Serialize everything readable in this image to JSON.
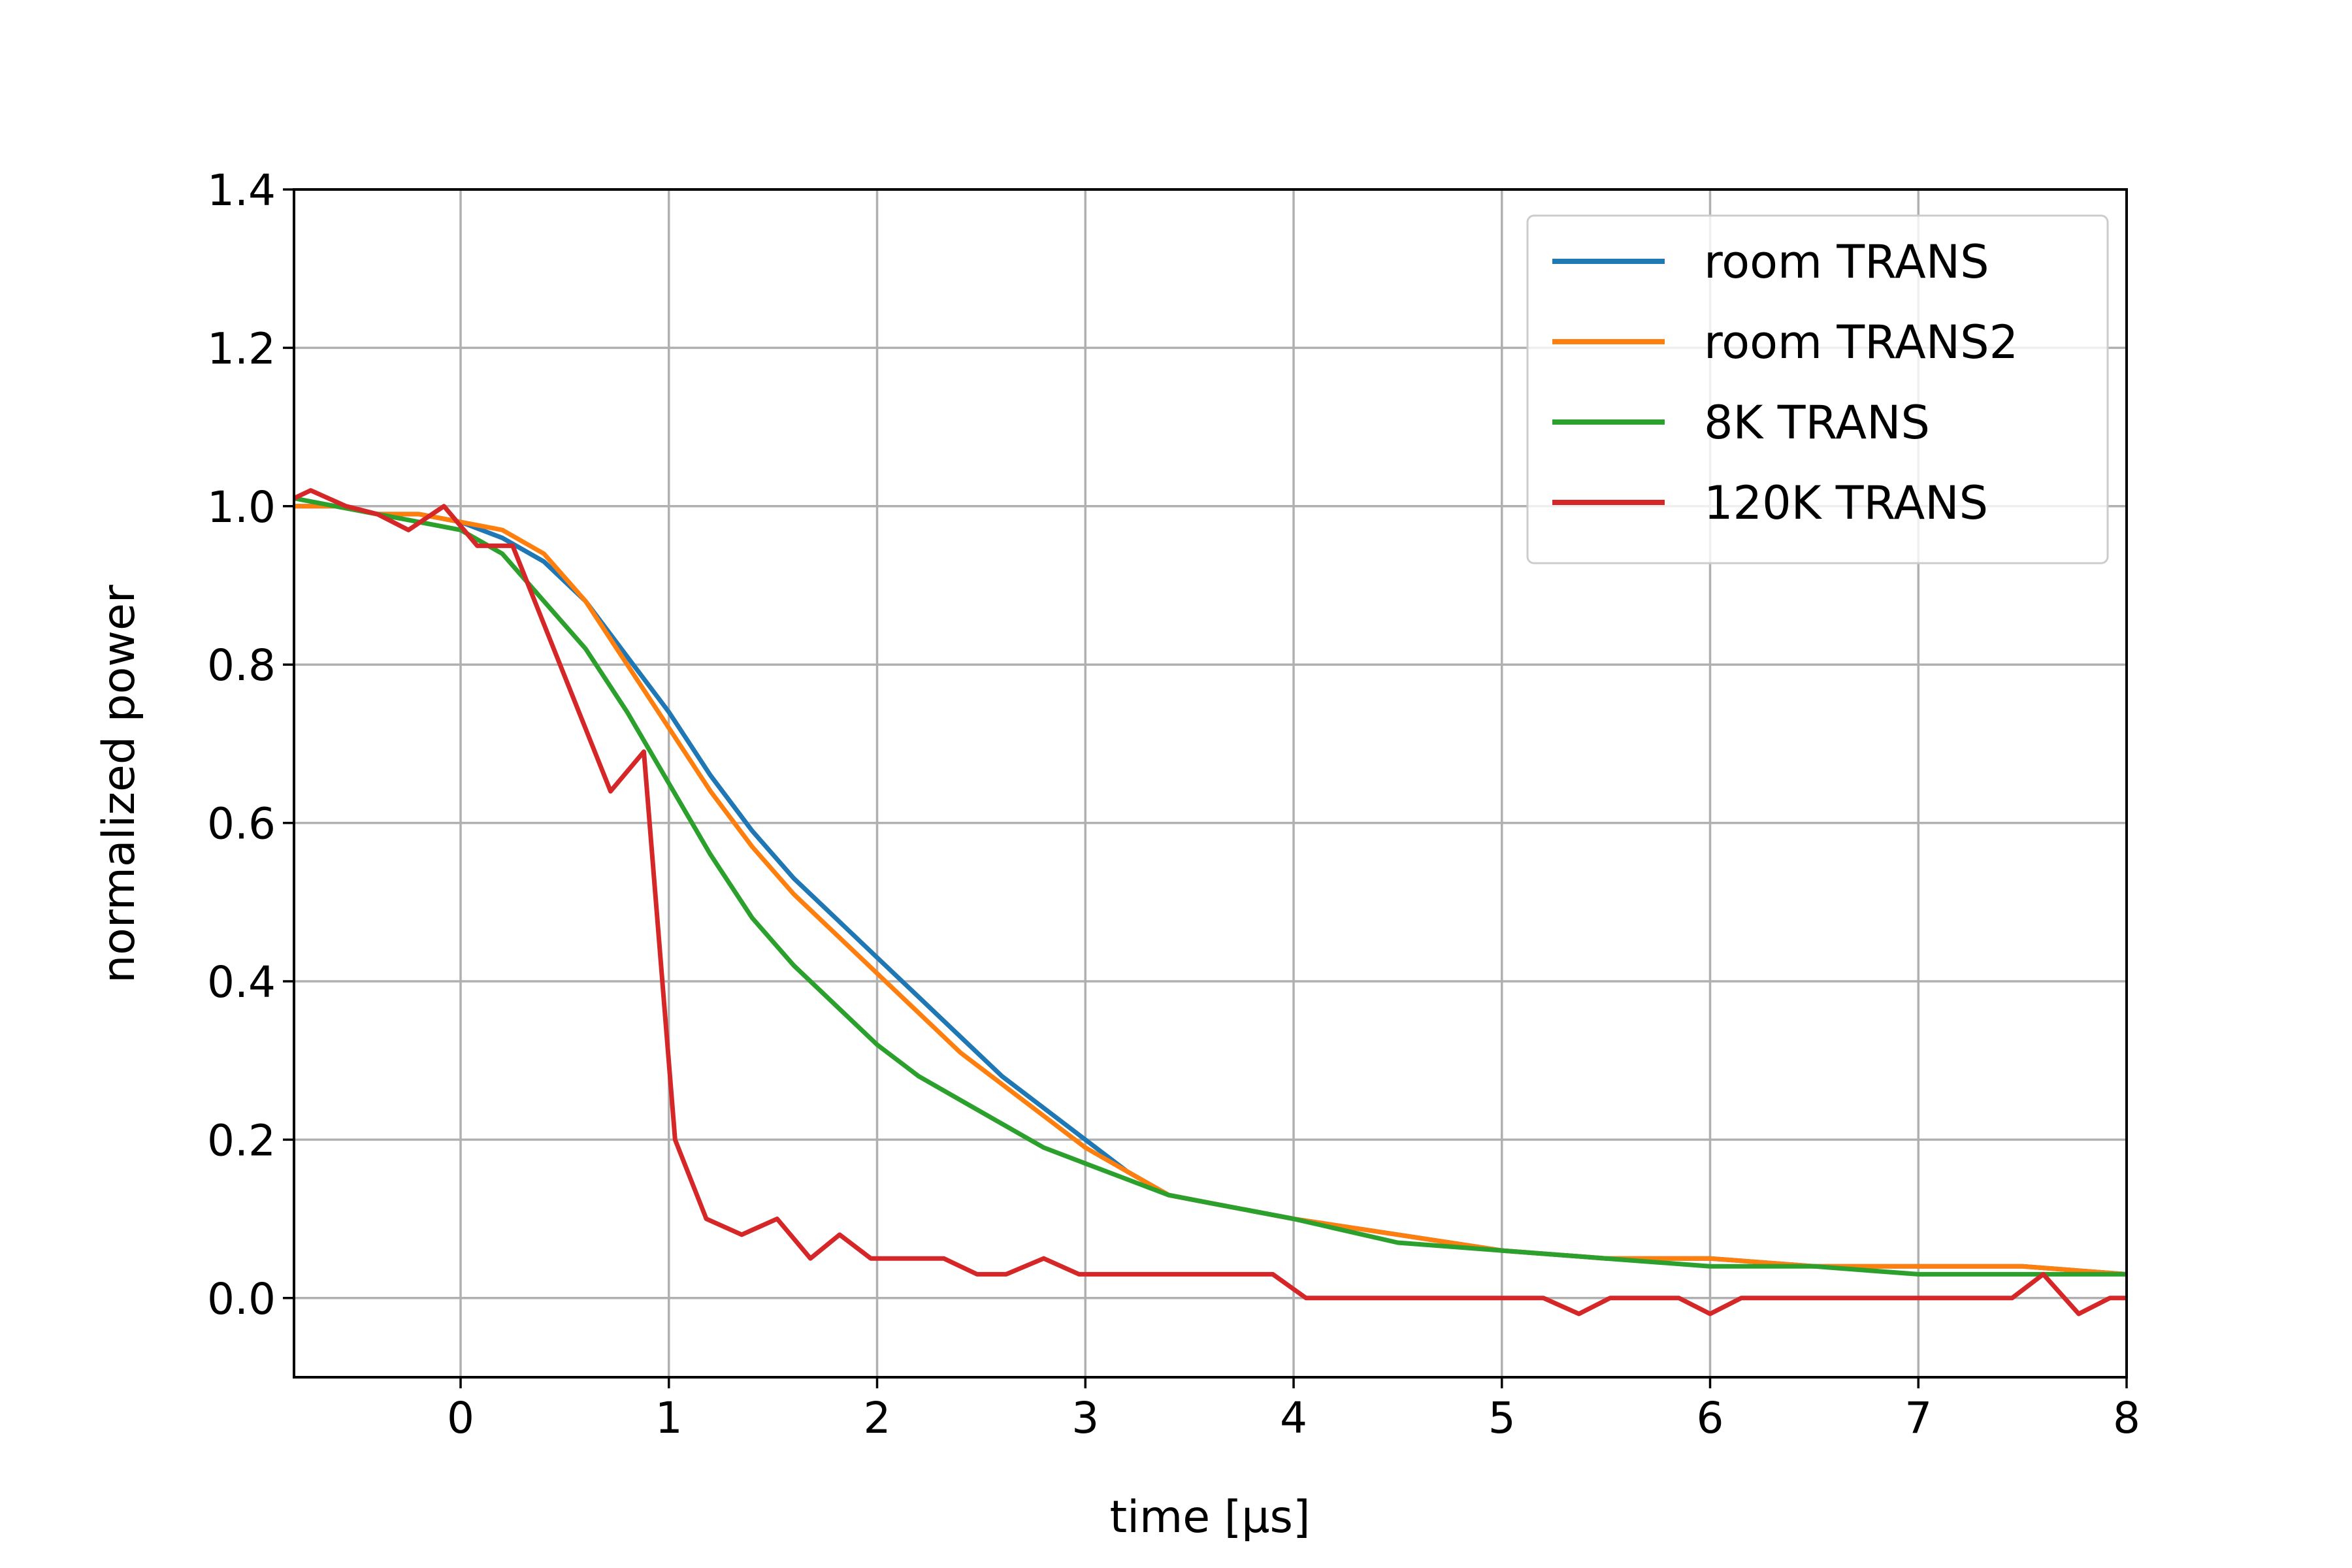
{
  "chart_data": {
    "type": "line",
    "xlabel": "time [μs]",
    "ylabel": "normalized power",
    "xlim": [
      -0.8,
      8
    ],
    "ylim": [
      -0.1,
      1.4
    ],
    "xticks": [
      0,
      1,
      2,
      3,
      4,
      5,
      6,
      7,
      8
    ],
    "yticks": [
      0.0,
      0.2,
      0.4,
      0.6,
      0.8,
      1.0,
      1.2,
      1.4
    ],
    "grid": true,
    "legend": "top-right",
    "series": [
      {
        "name": "room TRANS",
        "color": "#1f77b4",
        "x": [
          -0.8,
          -0.6,
          -0.4,
          -0.2,
          0.0,
          0.2,
          0.4,
          0.6,
          0.8,
          1.0,
          1.2,
          1.4,
          1.6,
          1.8,
          2.0,
          2.2,
          2.4,
          2.6,
          2.8,
          3.0,
          3.2,
          3.4,
          3.6,
          3.8,
          4.0,
          4.5,
          5.0,
          5.5,
          6.0,
          6.5,
          7.0,
          7.5,
          8.0
        ],
        "y": [
          1.0,
          1.0,
          0.99,
          0.99,
          0.98,
          0.96,
          0.93,
          0.88,
          0.81,
          0.74,
          0.66,
          0.59,
          0.53,
          0.48,
          0.43,
          0.38,
          0.33,
          0.28,
          0.24,
          0.2,
          0.16,
          0.13,
          0.12,
          0.11,
          0.1,
          0.08,
          0.06,
          0.05,
          0.05,
          0.04,
          0.04,
          0.04,
          0.03
        ]
      },
      {
        "name": "room TRANS2",
        "color": "#ff7f0e",
        "x": [
          -0.8,
          -0.6,
          -0.4,
          -0.2,
          0.0,
          0.2,
          0.4,
          0.6,
          0.8,
          1.0,
          1.2,
          1.4,
          1.6,
          1.8,
          2.0,
          2.2,
          2.4,
          2.6,
          2.8,
          3.0,
          3.2,
          3.4,
          3.6,
          3.8,
          4.0,
          4.5,
          5.0,
          5.5,
          6.0,
          6.5,
          7.0,
          7.5,
          8.0
        ],
        "y": [
          1.0,
          1.0,
          0.99,
          0.99,
          0.98,
          0.97,
          0.94,
          0.88,
          0.8,
          0.72,
          0.64,
          0.57,
          0.51,
          0.46,
          0.41,
          0.36,
          0.31,
          0.27,
          0.23,
          0.19,
          0.16,
          0.13,
          0.12,
          0.11,
          0.1,
          0.08,
          0.06,
          0.05,
          0.05,
          0.04,
          0.04,
          0.04,
          0.03
        ]
      },
      {
        "name": "8K TRANS",
        "color": "#2ca02c",
        "x": [
          -0.8,
          -0.6,
          -0.4,
          -0.2,
          0.0,
          0.2,
          0.4,
          0.6,
          0.8,
          1.0,
          1.2,
          1.4,
          1.6,
          1.8,
          2.0,
          2.2,
          2.4,
          2.6,
          2.8,
          3.0,
          3.2,
          3.4,
          3.6,
          3.8,
          4.0,
          4.5,
          5.0,
          5.5,
          6.0,
          6.5,
          7.0,
          7.5,
          8.0
        ],
        "y": [
          1.01,
          1.0,
          0.99,
          0.98,
          0.97,
          0.94,
          0.88,
          0.82,
          0.74,
          0.65,
          0.56,
          0.48,
          0.42,
          0.37,
          0.32,
          0.28,
          0.25,
          0.22,
          0.19,
          0.17,
          0.15,
          0.13,
          0.12,
          0.11,
          0.1,
          0.07,
          0.06,
          0.05,
          0.04,
          0.04,
          0.03,
          0.03,
          0.03
        ]
      },
      {
        "name": "120K TRANS",
        "color": "#d62728",
        "x": [
          -0.8,
          -0.72,
          -0.55,
          -0.4,
          -0.25,
          -0.08,
          0.08,
          0.25,
          0.72,
          0.88,
          1.03,
          1.18,
          1.35,
          1.52,
          1.68,
          1.82,
          1.97,
          2.15,
          2.32,
          2.48,
          2.62,
          2.8,
          2.97,
          3.15,
          3.3,
          3.5,
          3.7,
          3.9,
          4.06,
          4.5,
          5.0,
          5.2,
          5.37,
          5.52,
          5.85,
          6.0,
          6.15,
          6.5,
          7.0,
          7.45,
          7.6,
          7.77,
          7.92,
          8.0
        ],
        "y": [
          1.01,
          1.02,
          1.0,
          0.99,
          0.97,
          1.0,
          0.95,
          0.95,
          0.64,
          0.69,
          0.2,
          0.1,
          0.08,
          0.1,
          0.05,
          0.08,
          0.05,
          0.05,
          0.05,
          0.03,
          0.03,
          0.05,
          0.03,
          0.03,
          0.03,
          0.03,
          0.03,
          0.03,
          0.0,
          0.0,
          0.0,
          0.0,
          -0.02,
          0.0,
          0.0,
          -0.02,
          0.0,
          0.0,
          0.0,
          0.0,
          0.03,
          -0.02,
          0.0,
          0.0
        ]
      }
    ]
  }
}
